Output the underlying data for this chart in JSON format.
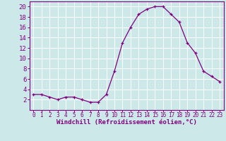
{
  "x": [
    0,
    1,
    2,
    3,
    4,
    5,
    6,
    7,
    8,
    9,
    10,
    11,
    12,
    13,
    14,
    15,
    16,
    17,
    18,
    19,
    20,
    21,
    22,
    23
  ],
  "y": [
    3,
    3,
    2.5,
    2,
    2.5,
    2.5,
    2,
    1.5,
    1.5,
    3,
    7.5,
    13,
    16,
    18.5,
    19.5,
    20,
    20,
    18.5,
    17,
    13,
    11,
    7.5,
    6.5,
    5.5
  ],
  "line_color": "#800080",
  "marker": "+",
  "marker_size": 3,
  "bg_color": "#cce8e8",
  "grid_color": "#ffffff",
  "xlabel": "Windchill (Refroidissement éolien,°C)",
  "xlim": [
    -0.5,
    23.5
  ],
  "ylim": [
    0,
    21
  ],
  "yticks": [
    2,
    4,
    6,
    8,
    10,
    12,
    14,
    16,
    18,
    20
  ],
  "xticks": [
    0,
    1,
    2,
    3,
    4,
    5,
    6,
    7,
    8,
    9,
    10,
    11,
    12,
    13,
    14,
    15,
    16,
    17,
    18,
    19,
    20,
    21,
    22,
    23
  ],
  "axis_color": "#800080",
  "tick_color": "#800080",
  "xlabel_color": "#800080",
  "xlabel_fontsize": 6.5,
  "ytick_fontsize": 6.5,
  "xtick_fontsize": 5.5,
  "line_width": 0.9,
  "markeredgewidth": 0.9
}
